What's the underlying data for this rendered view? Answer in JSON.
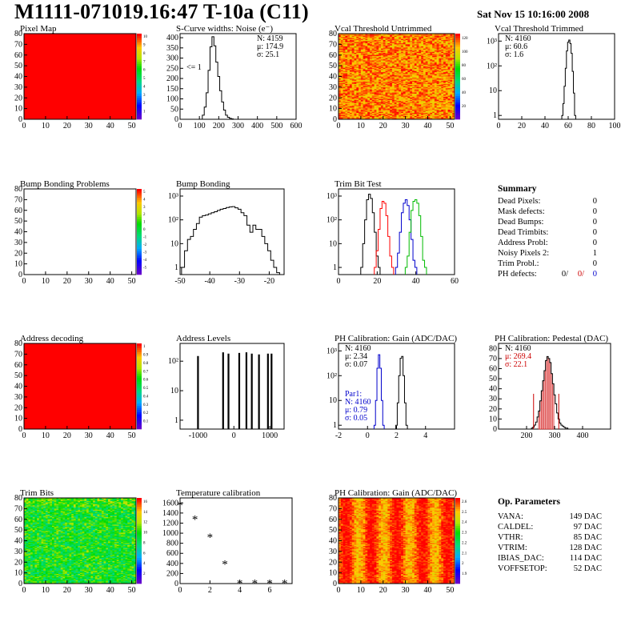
{
  "header": {
    "title": "M1111-071019.16:47 T-10a (C11)",
    "timestamp": "Sat Nov 15 10:16:00 2008"
  },
  "colors": {
    "red": "#ff0000",
    "black": "#000000",
    "blue": "#0000cc",
    "green": "#00bb00",
    "hist_red": "#cc0000"
  },
  "chart_data": [
    {
      "id": "pixel-map",
      "type": "heatmap",
      "title": "Pixel Map",
      "x_ticks": [
        "0",
        "10",
        "20",
        "30",
        "40",
        "50"
      ],
      "y_ticks": [
        "0",
        "10",
        "20",
        "30",
        "40",
        "50",
        "60",
        "70",
        "80"
      ],
      "xlim": [
        0,
        52
      ],
      "ylim": [
        0,
        80
      ],
      "fill": "uniform-red",
      "palette_ticks": [
        "1",
        "2",
        "3",
        "4",
        "5",
        "6",
        "7",
        "8",
        "9",
        "10"
      ]
    },
    {
      "id": "scurve",
      "type": "line",
      "title": "S-Curve widths: Noise (e⁻)",
      "x_ticks": [
        "0",
        "100",
        "200",
        "300",
        "400",
        "500",
        "600"
      ],
      "y_ticks": [
        "0",
        "50",
        "100",
        "150",
        "200",
        "250",
        "300",
        "350",
        "400"
      ],
      "xlim": [
        0,
        600
      ],
      "ylim": [
        0,
        420
      ],
      "stats": {
        "N": "4159",
        "mu": "174.9",
        "sigma": "25.1"
      },
      "annotation": "<= 1",
      "x": [
        120,
        130,
        140,
        150,
        160,
        170,
        180,
        190,
        200,
        210,
        220,
        230,
        240,
        250,
        260,
        270,
        280
      ],
      "values": [
        20,
        60,
        130,
        240,
        355,
        405,
        360,
        280,
        210,
        140,
        85,
        45,
        20,
        10,
        5,
        2,
        0
      ]
    },
    {
      "id": "vcal-untrimmed",
      "type": "heatmap",
      "title": "Vcal Threshold Untrimmed",
      "x_ticks": [
        "0",
        "10",
        "20",
        "30",
        "40",
        "50"
      ],
      "y_ticks": [
        "0",
        "10",
        "20",
        "30",
        "40",
        "50",
        "60",
        "70",
        "80"
      ],
      "xlim": [
        0,
        52
      ],
      "ylim": [
        0,
        80
      ],
      "fill": "noise-red-yellow",
      "palette_ticks": [
        "20",
        "40",
        "60",
        "80",
        "100",
        "120"
      ]
    },
    {
      "id": "vcal-trimmed",
      "type": "line",
      "title": "Vcal Threshold Trimmed",
      "x_ticks": [
        "0",
        "20",
        "40",
        "60",
        "80",
        "100"
      ],
      "y_ticks": [
        "1",
        "10",
        "10²",
        "10³"
      ],
      "xlim": [
        0,
        100
      ],
      "ylim_log": [
        0.7,
        2000
      ],
      "stats": {
        "N": "4160",
        "mu": "60.6",
        "sigma": "1.6"
      },
      "x": [
        55,
        56,
        57,
        58,
        59,
        60,
        61,
        62,
        63,
        64,
        65,
        66
      ],
      "values": [
        1,
        3,
        15,
        80,
        400,
        900,
        1100,
        800,
        320,
        60,
        8,
        1
      ]
    },
    {
      "id": "bump-problems",
      "type": "heatmap",
      "title": "Bump Bonding Problems",
      "x_ticks": [
        "0",
        "10",
        "20",
        "30",
        "40",
        "50"
      ],
      "y_ticks": [
        "0",
        "10",
        "20",
        "30",
        "40",
        "50",
        "60",
        "70",
        "80"
      ],
      "xlim": [
        0,
        52
      ],
      "ylim": [
        0,
        80
      ],
      "fill": "empty",
      "palette_ticks": [
        "-5",
        "-4",
        "-3",
        "-2",
        "-1",
        "0",
        "1",
        "2",
        "3",
        "4",
        "5"
      ]
    },
    {
      "id": "bump-bonding",
      "type": "line",
      "title": "Bump Bonding",
      "x_ticks": [
        "-50",
        "-40",
        "-30",
        "-20"
      ],
      "y_ticks": [
        "1",
        "10",
        "10²",
        "10³"
      ],
      "xlim": [
        -50,
        -15
      ],
      "ylim_log": [
        0.5,
        2000
      ],
      "x": [
        -49,
        -48,
        -47,
        -46,
        -45,
        -44,
        -43,
        -42,
        -41,
        -40,
        -39,
        -38,
        -37,
        -36,
        -35,
        -34,
        -33,
        -32,
        -31,
        -30,
        -29,
        -28,
        -27,
        -26,
        -25,
        -24,
        -23,
        -22,
        -21,
        -20,
        -19,
        -18,
        -17
      ],
      "values": [
        1,
        5,
        15,
        20,
        40,
        70,
        130,
        150,
        160,
        180,
        200,
        220,
        250,
        280,
        300,
        330,
        350,
        360,
        320,
        280,
        200,
        150,
        60,
        30,
        60,
        40,
        40,
        20,
        10,
        5,
        2,
        1,
        0.6
      ]
    },
    {
      "id": "trim-bit-test",
      "type": "line",
      "title": "Trim Bit Test",
      "x_ticks": [
        "0",
        "20",
        "40",
        "60"
      ],
      "y_ticks": [
        "1",
        "10",
        "10²",
        "10³"
      ],
      "xlim": [
        0,
        60
      ],
      "ylim_log": [
        0.5,
        2000
      ],
      "series": [
        {
          "color": "black",
          "x": [
            12,
            13,
            14,
            15,
            16,
            17,
            18,
            19,
            20,
            21
          ],
          "values": [
            1,
            10,
            100,
            700,
            1200,
            800,
            200,
            30,
            3,
            1
          ]
        },
        {
          "color": "red",
          "x": [
            19,
            20,
            21,
            22,
            23,
            24,
            25,
            26,
            27,
            28
          ],
          "values": [
            1,
            5,
            40,
            300,
            600,
            500,
            150,
            20,
            3,
            1
          ]
        },
        {
          "color": "blue",
          "x": [
            30,
            31,
            32,
            33,
            34,
            35,
            36,
            37,
            38,
            39,
            40
          ],
          "values": [
            1,
            4,
            30,
            200,
            500,
            700,
            400,
            100,
            15,
            2,
            1
          ]
        },
        {
          "color": "green",
          "x": [
            35,
            36,
            37,
            38,
            39,
            40,
            41,
            42,
            43,
            44,
            45
          ],
          "values": [
            1,
            3,
            30,
            250,
            600,
            700,
            500,
            150,
            20,
            2,
            1
          ]
        }
      ]
    },
    {
      "id": "summary",
      "type": "table",
      "title": "Summary",
      "rows": [
        {
          "label": "Dead Pixels:",
          "value": "0"
        },
        {
          "label": "Mask defects:",
          "value": "0"
        },
        {
          "label": "Dead Bumps:",
          "value": "0"
        },
        {
          "label": "Dead Trimbits:",
          "value": "0"
        },
        {
          "label": "Address Probl:",
          "value": "0"
        },
        {
          "label": "Noisy Pixels 2:",
          "value": "1"
        },
        {
          "label": "Trim Probl.:",
          "value": "0"
        }
      ],
      "ph_defects": {
        "label": "PH defects:",
        "v1": "0/",
        "v2": "0/",
        "v3": "0"
      }
    },
    {
      "id": "address-decoding",
      "type": "heatmap",
      "title": "Address decoding",
      "x_ticks": [
        "0",
        "10",
        "20",
        "30",
        "40",
        "50"
      ],
      "y_ticks": [
        "0",
        "10",
        "20",
        "30",
        "40",
        "50",
        "60",
        "70",
        "80"
      ],
      "xlim": [
        0,
        52
      ],
      "ylim": [
        0,
        80
      ],
      "fill": "uniform-red",
      "palette_ticks": [
        "0.1",
        "0.2",
        "0.3",
        "0.4",
        "0.5",
        "0.6",
        "0.7",
        "0.8",
        "0.9",
        "1"
      ]
    },
    {
      "id": "address-levels",
      "type": "bar",
      "title": "Address Levels",
      "x_ticks": [
        "-1000",
        "0",
        "1000"
      ],
      "y_ticks": [
        "1",
        "10",
        "10²"
      ],
      "xlim": [
        -1500,
        1400
      ],
      "ylim_log": [
        0.5,
        400
      ],
      "x": [
        -1000,
        -300,
        -150,
        150,
        350,
        500,
        700,
        950,
        1050
      ],
      "values": [
        150,
        200,
        180,
        190,
        200,
        180,
        170,
        180,
        180
      ]
    },
    {
      "id": "ph-gain-1d",
      "type": "line",
      "title": "PH Calibration: Gain (ADC/DAC)",
      "x_ticks": [
        "-2",
        "0",
        "2",
        "4"
      ],
      "y_ticks": [
        "1",
        "10",
        "10²",
        "10³"
      ],
      "xlim": [
        -2,
        6
      ],
      "ylim_log": [
        0.7,
        2000
      ],
      "stats": {
        "N": "4160",
        "mu": "2.34",
        "sigma": "0.07"
      },
      "stats2": {
        "label": "Par1:",
        "N": "4160",
        "mu": "0.79",
        "sigma": "0.05"
      },
      "series": [
        {
          "color": "blue",
          "x": [
            0.5,
            0.6,
            0.7,
            0.8,
            0.9,
            1.0,
            1.1
          ],
          "values": [
            1,
            10,
            200,
            700,
            200,
            10,
            1
          ]
        },
        {
          "color": "black",
          "x": [
            2.0,
            2.1,
            2.2,
            2.3,
            2.4,
            2.5,
            2.6,
            2.7
          ],
          "values": [
            1,
            8,
            100,
            500,
            600,
            100,
            8,
            1
          ]
        }
      ]
    },
    {
      "id": "ph-pedestal",
      "type": "bar",
      "title": "PH Calibration: Pedestal (DAC)",
      "x_ticks": [
        "200",
        "300",
        "400"
      ],
      "y_ticks": [
        "0",
        "10",
        "20",
        "30",
        "40",
        "50",
        "60",
        "70",
        "80"
      ],
      "xlim": [
        100,
        500
      ],
      "ylim": [
        0,
        85
      ],
      "stats": {
        "N": "4160",
        "mu": "269.4",
        "sigma": "22.1"
      },
      "x": [
        220,
        225,
        230,
        235,
        240,
        245,
        250,
        255,
        260,
        265,
        270,
        275,
        280,
        285,
        290,
        295,
        300,
        305,
        310,
        315,
        320,
        325,
        330,
        335,
        340,
        345,
        350
      ],
      "values": [
        1,
        2,
        4,
        7,
        12,
        18,
        28,
        38,
        48,
        58,
        68,
        72,
        70,
        66,
        55,
        45,
        34,
        25,
        16,
        10,
        6,
        4,
        3,
        2,
        1,
        1,
        0
      ]
    },
    {
      "id": "trim-bits",
      "type": "heatmap",
      "title": "Trim Bits",
      "x_ticks": [
        "0",
        "10",
        "20",
        "30",
        "40",
        "50"
      ],
      "y_ticks": [
        "0",
        "10",
        "20",
        "30",
        "40",
        "50",
        "60",
        "70",
        "80"
      ],
      "xlim": [
        0,
        52
      ],
      "ylim": [
        0,
        80
      ],
      "fill": "noise-green",
      "palette_ticks": [
        "2",
        "4",
        "6",
        "8",
        "10",
        "12",
        "14",
        "16"
      ]
    },
    {
      "id": "temperature",
      "type": "scatter",
      "title": "Temperature calibration",
      "x_ticks": [
        "0",
        "2",
        "4",
        "6"
      ],
      "y_ticks": [
        "0",
        "200",
        "400",
        "600",
        "800",
        "1000",
        "1200",
        "1400",
        "1600"
      ],
      "xlim": [
        0,
        7.5
      ],
      "ylim": [
        0,
        1700
      ],
      "x": [
        0,
        1,
        2,
        3,
        4,
        5,
        6,
        7
      ],
      "values": [
        1560,
        1280,
        920,
        390,
        10,
        10,
        5,
        5
      ]
    },
    {
      "id": "ph-gain-map",
      "type": "heatmap",
      "title": "PH Calibration: Gain (ADC/DAC)",
      "x_ticks": [
        "0",
        "10",
        "20",
        "30",
        "40",
        "50"
      ],
      "y_ticks": [
        "0",
        "10",
        "20",
        "30",
        "40",
        "50",
        "60",
        "70",
        "80"
      ],
      "xlim": [
        0,
        52
      ],
      "ylim": [
        0,
        80
      ],
      "fill": "noise-red-yellow-stripes",
      "palette_ticks": [
        "1.9",
        "2",
        "2.1",
        "2.2",
        "2.3",
        "2.4",
        "2.5",
        "2.6"
      ]
    },
    {
      "id": "op-params",
      "type": "table",
      "title": "Op. Parameters",
      "rows": [
        {
          "label": "VANA:",
          "value": "149 DAC"
        },
        {
          "label": "CALDEL:",
          "value": "97 DAC"
        },
        {
          "label": "VTHR:",
          "value": "85 DAC"
        },
        {
          "label": "VTRIM:",
          "value": "128 DAC"
        },
        {
          "label": "IBIAS_DAC:",
          "value": "114 DAC"
        },
        {
          "label": "VOFFSETOP:",
          "value": "52 DAC"
        }
      ]
    }
  ]
}
